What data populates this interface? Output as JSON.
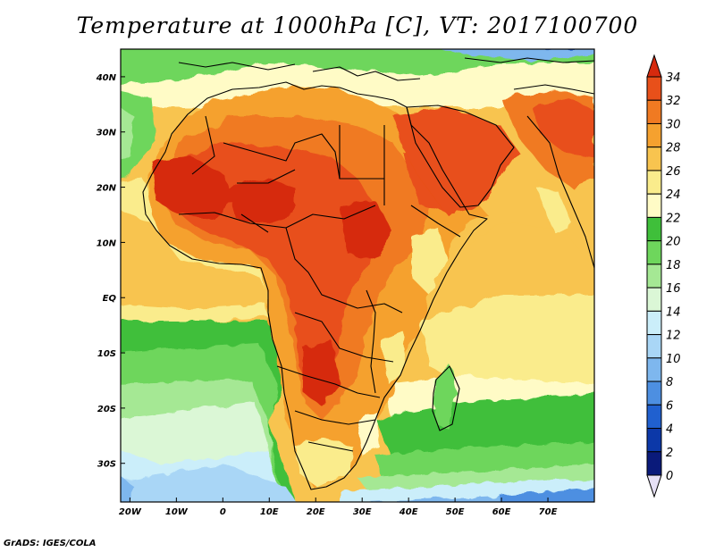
{
  "title": "Temperature at 1000hPa [C], VT: 2017100700",
  "footer": "GrADS: IGES/COLA",
  "map": {
    "lon_range": [
      -22,
      80
    ],
    "lat_range": [
      -37,
      45
    ],
    "x_ticks": [
      "20W",
      "10W",
      "0",
      "10E",
      "20E",
      "30E",
      "40E",
      "50E",
      "60E",
      "70E"
    ],
    "x_tick_lons": [
      -20,
      -10,
      0,
      10,
      20,
      30,
      40,
      50,
      60,
      70
    ],
    "y_ticks": [
      "40N",
      "30N",
      "20N",
      "10N",
      "EQ",
      "10S",
      "20S",
      "30S"
    ],
    "y_tick_lats": [
      40,
      30,
      20,
      10,
      0,
      -10,
      -20,
      -30
    ],
    "field": "Temperature",
    "units": "C"
  },
  "colorbar": {
    "labels": [
      "34",
      "32",
      "30",
      "28",
      "26",
      "24",
      "22",
      "20",
      "18",
      "16",
      "14",
      "12",
      "10",
      "8",
      "6",
      "4",
      "2",
      "0"
    ],
    "colors": [
      "#d62a0e",
      "#e8501a",
      "#f07a22",
      "#f5a12f",
      "#f8c44f",
      "#faec8c",
      "#fffbc6",
      "#3fbf3a",
      "#6ed65c",
      "#a5e894",
      "#dbf7d6",
      "#cbeefa",
      "#a9d6f6",
      "#7eb7ee",
      "#4d8fe1",
      "#2060cf",
      "#0c38a8",
      "#0a1a7a",
      "#100a55"
    ]
  }
}
